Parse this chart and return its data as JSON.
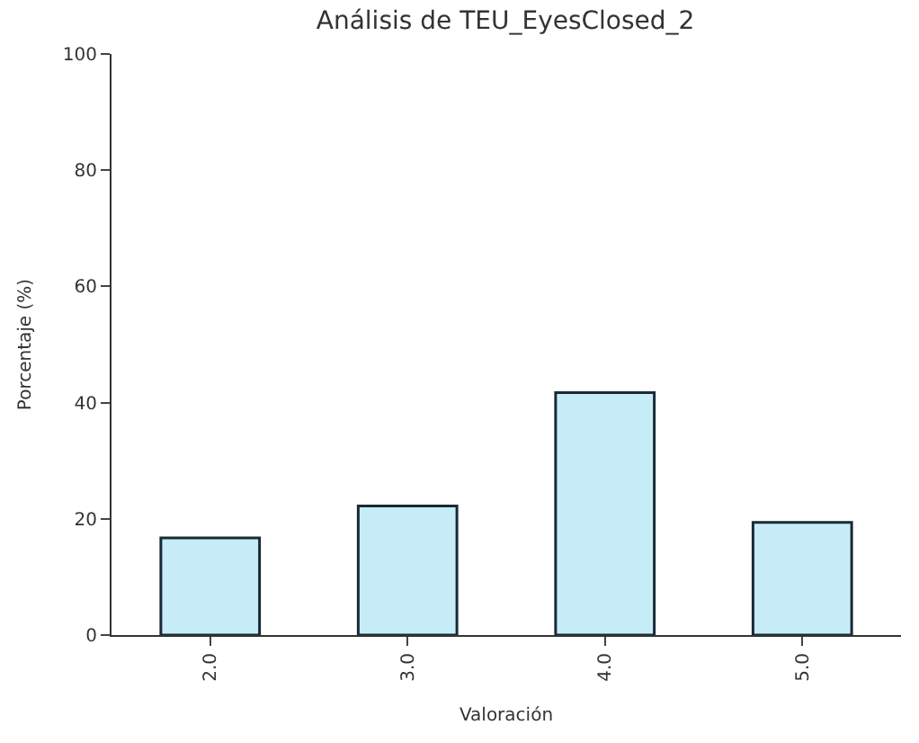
{
  "chart_data": {
    "type": "bar",
    "title": "Análisis de TEU_EyesClosed_2",
    "xlabel": "Valoración",
    "ylabel": "Porcentaje (%)",
    "categories": [
      "2.0",
      "3.0",
      "4.0",
      "5.0"
    ],
    "values": [
      16.7,
      22.2,
      41.7,
      19.4
    ],
    "color": "#c6ecf8",
    "ylim": [
      0,
      100
    ],
    "yticks": [
      0,
      20,
      40,
      60,
      80,
      100
    ]
  }
}
